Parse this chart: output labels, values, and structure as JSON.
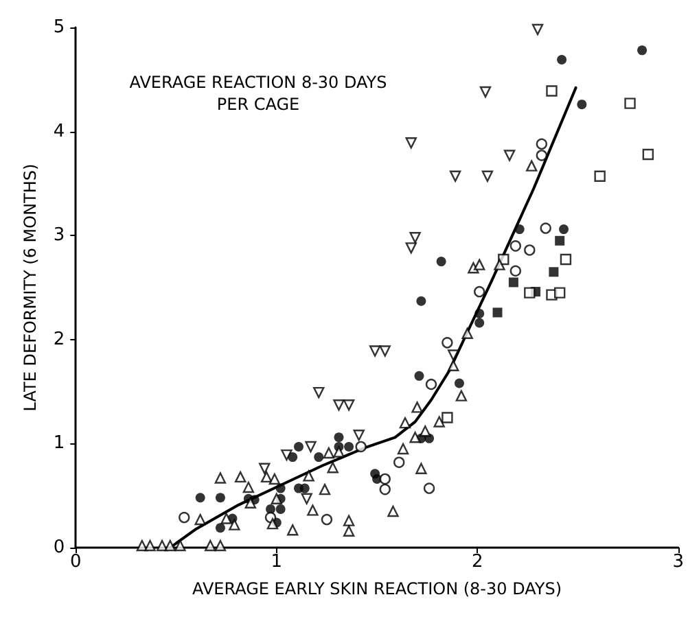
{
  "chart_data": {
    "type": "scatter",
    "xlabel": "AVERAGE EARLY SKIN REACTION (8-30 DAYS)",
    "ylabel": "LATE DEFORMITY (6 MONTHS)",
    "annotations": [
      "AVERAGE REACTION 8-30 DAYS\nPER CAGE"
    ],
    "xlim": [
      0,
      3
    ],
    "xticks": [
      0,
      1,
      2,
      3
    ],
    "ylim": [
      0,
      5
    ],
    "yticks": [
      0,
      1,
      2,
      3,
      4,
      5
    ],
    "grid": false,
    "series": [
      {
        "color": "#000000",
        "marker": "circle",
        "x": [
          0.62,
          0.72,
          0.72,
          0.78,
          0.86,
          0.89,
          0.97,
          1.02,
          1.02,
          1.0,
          1.02,
          1.11,
          1.08,
          1.11,
          1.14,
          1.21,
          1.31,
          1.31,
          1.36,
          1.5,
          1.49,
          1.71,
          1.72,
          1.72,
          1.76,
          1.82,
          1.91,
          2.01,
          2.01,
          2.21,
          2.42,
          2.43,
          2.52,
          2.82
        ],
        "values": [
          0.48,
          0.48,
          0.19,
          0.28,
          0.47,
          0.46,
          0.37,
          0.57,
          0.37,
          0.24,
          0.47,
          0.97,
          0.87,
          0.57,
          0.57,
          0.87,
          1.06,
          0.97,
          0.97,
          0.66,
          0.71,
          1.65,
          2.37,
          1.05,
          1.05,
          2.75,
          1.58,
          2.25,
          2.16,
          3.06,
          4.69,
          3.06,
          4.26,
          4.78
        ]
      },
      {
        "color": "#000000",
        "marker": "square",
        "x": [
          2.1,
          2.18,
          2.29,
          2.38,
          2.41
        ],
        "values": [
          2.26,
          2.55,
          2.46,
          2.65,
          2.95
        ]
      },
      {
        "color": "#000000",
        "marker": "square-open",
        "x": [
          1.85,
          2.13,
          2.26,
          2.37,
          2.37,
          2.41,
          2.44,
          2.61,
          2.76,
          2.85
        ],
        "values": [
          1.25,
          2.77,
          2.45,
          4.39,
          2.43,
          2.45,
          2.77,
          3.57,
          4.27,
          3.78
        ]
      },
      {
        "color": "#000000",
        "marker": "circle-open",
        "x": [
          0.54,
          0.97,
          1.25,
          1.42,
          1.54,
          1.54,
          1.61,
          1.76,
          1.77,
          1.85,
          2.01,
          2.19,
          2.19,
          2.26,
          2.32,
          2.32,
          2.34
        ],
        "values": [
          0.29,
          0.29,
          0.27,
          0.97,
          0.66,
          0.56,
          0.82,
          0.57,
          1.57,
          1.97,
          2.46,
          2.9,
          2.66,
          2.86,
          3.88,
          3.77,
          3.07
        ]
      },
      {
        "color": "#000000",
        "marker": "triangle-open",
        "x": [
          0.33,
          0.37,
          0.43,
          0.47,
          0.52,
          0.67,
          0.72,
          0.62,
          0.72,
          0.75,
          0.79,
          0.82,
          0.86,
          0.87,
          0.95,
          0.99,
          0.98,
          1.0,
          1.08,
          1.18,
          1.16,
          1.24,
          1.26,
          1.28,
          1.31,
          1.36,
          1.36,
          1.58,
          1.63,
          1.64,
          1.69,
          1.7,
          1.72,
          1.74,
          1.81,
          1.88,
          1.92,
          1.95,
          1.98,
          2.01,
          2.11,
          2.27
        ],
        "values": [
          0.02,
          0.02,
          0.02,
          0.02,
          0.02,
          0.02,
          0.02,
          0.27,
          0.67,
          0.28,
          0.22,
          0.68,
          0.58,
          0.43,
          0.68,
          0.66,
          0.23,
          0.47,
          0.17,
          0.36,
          0.69,
          0.56,
          0.91,
          0.77,
          0.92,
          0.26,
          0.16,
          0.35,
          0.95,
          1.2,
          1.06,
          1.35,
          0.76,
          1.12,
          1.21,
          1.75,
          1.46,
          2.06,
          2.69,
          2.72,
          2.72,
          3.67
        ]
      },
      {
        "color": "#000000",
        "marker": "triangle-down-open",
        "x": [
          0.94,
          1.05,
          1.15,
          1.17,
          1.21,
          1.31,
          1.36,
          1.41,
          1.49,
          1.54,
          1.67,
          1.67,
          1.69,
          1.89,
          2.04,
          2.05,
          2.16,
          2.3,
          1.88
        ],
        "values": [
          0.76,
          0.89,
          0.47,
          0.97,
          1.49,
          1.37,
          1.37,
          1.08,
          1.89,
          1.89,
          3.89,
          2.88,
          2.98,
          3.57,
          4.38,
          3.57,
          3.77,
          4.98,
          1.85
        ]
      },
      {
        "type": "line",
        "color": "#000000",
        "marker": "none",
        "line_style": "solid",
        "x": [
          0.47,
          0.6,
          0.81,
          1.02,
          1.23,
          1.44,
          1.59,
          1.69,
          1.77,
          1.86,
          1.94,
          2.07,
          2.28,
          2.49
        ],
        "values": [
          0,
          0.18,
          0.41,
          0.6,
          0.79,
          0.96,
          1.06,
          1.21,
          1.42,
          1.7,
          2.03,
          2.56,
          3.45,
          4.42
        ]
      }
    ]
  }
}
